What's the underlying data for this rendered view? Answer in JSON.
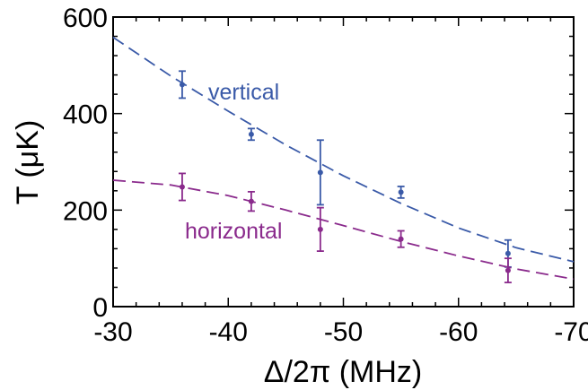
{
  "chart_data": {
    "type": "scatter",
    "title": "",
    "xlabel": "Δ/2π (MHz)",
    "ylabel": "T (μK)",
    "xlim": [
      -30,
      -70
    ],
    "ylim": [
      0,
      600
    ],
    "x_ticks": [
      -30,
      -40,
      -50,
      -60,
      -70
    ],
    "y_ticks": [
      0,
      200,
      400,
      600
    ],
    "grid": false,
    "legend": "none",
    "series": [
      {
        "name": "vertical",
        "color": "#3a5aa8",
        "x": [
          -36,
          -42,
          -48,
          -55,
          -64.3
        ],
        "y": [
          460,
          357,
          278,
          237,
          110
        ],
        "y_err": [
          28,
          12,
          67,
          12,
          28
        ],
        "fit": {
          "x": [
            -30,
            -35,
            -40,
            -45,
            -50,
            -55,
            -60,
            -65,
            -70
          ],
          "y": [
            558,
            478,
            405,
            335,
            271,
            214,
            163,
            122,
            93
          ]
        }
      },
      {
        "name": "horizontal",
        "color": "#8a2a8c",
        "x": [
          -36,
          -42,
          -48,
          -55,
          -64.3
        ],
        "y": [
          248,
          218,
          160,
          140,
          75
        ],
        "y_err": [
          28,
          20,
          45,
          17,
          25
        ],
        "fit": {
          "x": [
            -30,
            -35,
            -40,
            -45,
            -50,
            -55,
            -60,
            -65,
            -70
          ],
          "y": [
            262,
            252,
            230,
            200,
            168,
            135,
            105,
            78,
            57
          ]
        }
      }
    ]
  }
}
